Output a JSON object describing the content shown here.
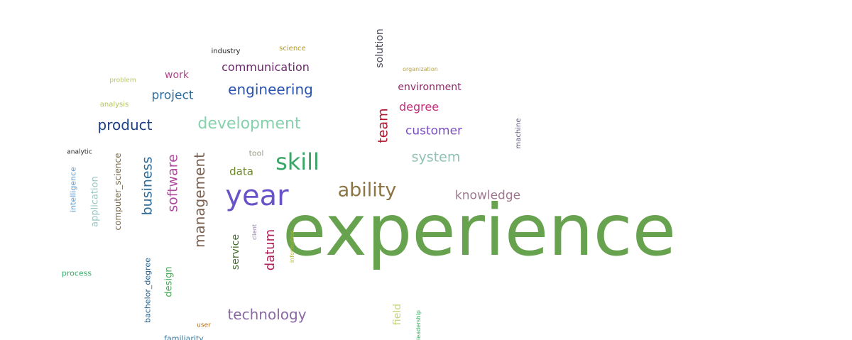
{
  "words": [
    {
      "id": "experience",
      "text": "experience",
      "color": "#67a24f"
    },
    {
      "id": "year",
      "text": "year",
      "color": "#6a52c8"
    },
    {
      "id": "skill",
      "text": "skill",
      "color": "#3aa567"
    },
    {
      "id": "ability",
      "text": "ability",
      "color": "#8c7443"
    },
    {
      "id": "development",
      "text": "development",
      "color": "#86d2ad"
    },
    {
      "id": "engineering",
      "text": "engineering",
      "color": "#2a52b0"
    },
    {
      "id": "communication",
      "text": "communication",
      "color": "#6b2a6a"
    },
    {
      "id": "product",
      "text": "product",
      "color": "#1c3f86"
    },
    {
      "id": "project",
      "text": "project",
      "color": "#2f6fa0"
    },
    {
      "id": "work",
      "text": "work",
      "color": "#b0478a"
    },
    {
      "id": "problem",
      "text": "problem",
      "color": "#b9c36a"
    },
    {
      "id": "analysis",
      "text": "analysis",
      "color": "#b5c45d"
    },
    {
      "id": "industry",
      "text": "industry",
      "color": "#222222"
    },
    {
      "id": "science",
      "text": "science",
      "color": "#b39a1f"
    },
    {
      "id": "solution",
      "text": "solution",
      "color": "#4a4a5a"
    },
    {
      "id": "organization",
      "text": "organization",
      "color": "#b3a34a"
    },
    {
      "id": "environment",
      "text": "environment",
      "color": "#8e2a66"
    },
    {
      "id": "degree",
      "text": "degree",
      "color": "#c2307a"
    },
    {
      "id": "team",
      "text": "team",
      "color": "#b0172e"
    },
    {
      "id": "customer",
      "text": "customer",
      "color": "#7b4fc1"
    },
    {
      "id": "system",
      "text": "system",
      "color": "#8fc2b4"
    },
    {
      "id": "machine",
      "text": "machine",
      "color": "#5a5a7a"
    },
    {
      "id": "knowledge",
      "text": "knowledge",
      "color": "#a0788f"
    },
    {
      "id": "tool",
      "text": "tool",
      "color": "#9a9a8a"
    },
    {
      "id": "data",
      "text": "data",
      "color": "#6d8a2a"
    },
    {
      "id": "analytic",
      "text": "analytic",
      "color": "#222222"
    },
    {
      "id": "intelligence",
      "text": "intelligence",
      "color": "#5a9ad2"
    },
    {
      "id": "application",
      "text": "application",
      "color": "#9dc7c2"
    },
    {
      "id": "computer_science",
      "text": "computer_science",
      "color": "#7a6a4a"
    },
    {
      "id": "business",
      "text": "business",
      "color": "#2d6a95"
    },
    {
      "id": "software",
      "text": "software",
      "color": "#b04aa0"
    },
    {
      "id": "management",
      "text": "management",
      "color": "#7a6050"
    },
    {
      "id": "service",
      "text": "service",
      "color": "#3f6a2a"
    },
    {
      "id": "datum",
      "text": "datum",
      "color": "#b0205a"
    },
    {
      "id": "client",
      "text": "client",
      "color": "#8a7aa0"
    },
    {
      "id": "information",
      "text": "information",
      "color": "#b5b52a"
    },
    {
      "id": "process",
      "text": "process",
      "color": "#3aa86a"
    },
    {
      "id": "bachelor_degree",
      "text": "bachelor_degree",
      "color": "#2a5f8a"
    },
    {
      "id": "design",
      "text": "design",
      "color": "#4aa85a"
    },
    {
      "id": "technology",
      "text": "technology",
      "color": "#8a6aa2"
    },
    {
      "id": "field",
      "text": "field",
      "color": "#c2d67a"
    },
    {
      "id": "leadership",
      "text": "leadership",
      "color": "#2ab05a"
    },
    {
      "id": "user",
      "text": "user",
      "color": "#b06a1a"
    },
    {
      "id": "familiarity",
      "text": "familiarity",
      "color": "#3a7aa0"
    }
  ]
}
